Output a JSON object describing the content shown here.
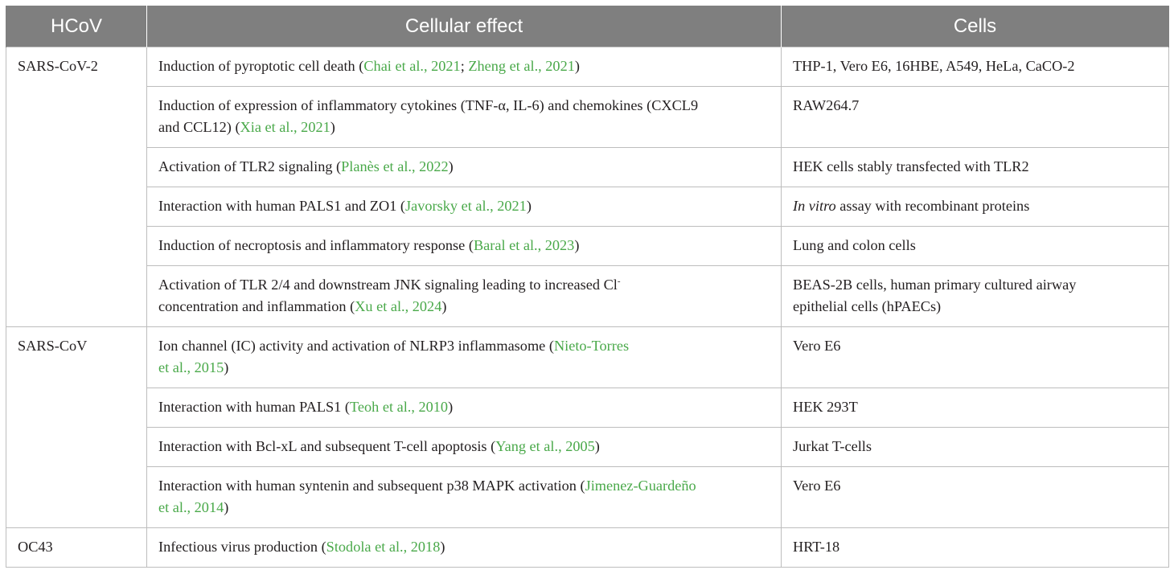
{
  "table": {
    "headers": [
      "HCoV",
      "Cellular effect",
      "Cells"
    ],
    "groups": [
      {
        "hcov": "SARS-CoV-2",
        "rows": [
          {
            "effect_parts": [
              {
                "t": "Induction of pyroptotic cell death (",
                "ref": false
              },
              {
                "t": "Chai et al., 2021",
                "ref": true
              },
              {
                "t": "; ",
                "ref": false
              },
              {
                "t": "Zheng et al., 2021",
                "ref": true
              },
              {
                "t": ")",
                "ref": false
              }
            ],
            "cells_parts": [
              {
                "t": "THP-1, Vero E6, 16HBE, A549, HeLa, CaCO-2",
                "i": false
              }
            ],
            "lines": 1
          },
          {
            "effect_parts": [
              {
                "t": "Induction of expression of inflammatory cytokines (TNF-α, IL-6) and chemokines (CXCL9",
                "ref": false
              },
              {
                "t": "\n",
                "ref": false
              },
              {
                "t": "and CCL12) (",
                "ref": false
              },
              {
                "t": "Xia et al., 2021",
                "ref": true
              },
              {
                "t": ")",
                "ref": false
              }
            ],
            "cells_parts": [
              {
                "t": "RAW264.7",
                "i": false
              }
            ],
            "lines": 2
          },
          {
            "effect_parts": [
              {
                "t": "Activation of TLR2 signaling (",
                "ref": false
              },
              {
                "t": "Planès et al., 2022",
                "ref": true
              },
              {
                "t": ")",
                "ref": false
              }
            ],
            "cells_parts": [
              {
                "t": "HEK cells stably transfected with TLR2",
                "i": false
              }
            ],
            "lines": 1
          },
          {
            "effect_parts": [
              {
                "t": "Interaction with human PALS1 and ZO1 (",
                "ref": false
              },
              {
                "t": "Javorsky et al., 2021",
                "ref": true
              },
              {
                "t": ")",
                "ref": false
              }
            ],
            "cells_parts": [
              {
                "t": "In vitro",
                "i": true
              },
              {
                "t": " assay with recombinant proteins",
                "i": false
              }
            ],
            "lines": 1
          },
          {
            "effect_parts": [
              {
                "t": "Induction of necroptosis and inflammatory response (",
                "ref": false
              },
              {
                "t": "Baral et al., 2023",
                "ref": true
              },
              {
                "t": ")",
                "ref": false
              }
            ],
            "cells_parts": [
              {
                "t": "Lung and colon cells",
                "i": false
              }
            ],
            "lines": 1
          },
          {
            "effect_parts": [
              {
                "t": "Activation of TLR 2/4 and downstream JNK signaling leading to increased Cl",
                "ref": false
              },
              {
                "t": "-",
                "ref": false,
                "sup": true
              },
              {
                "t": "\n",
                "ref": false
              },
              {
                "t": "concentration and inflammation (",
                "ref": false
              },
              {
                "t": "Xu et al., 2024",
                "ref": true
              },
              {
                "t": ")",
                "ref": false
              }
            ],
            "cells_parts": [
              {
                "t": "BEAS-2B cells, human primary cultured airway",
                "i": false
              },
              {
                "t": "\n",
                "i": false
              },
              {
                "t": "epithelial cells (hPAECs)",
                "i": false
              }
            ],
            "lines": 2
          }
        ]
      },
      {
        "hcov": "SARS-CoV",
        "rows": [
          {
            "effect_parts": [
              {
                "t": "Ion channel (IC) activity and activation of NLRP3 inflammasome (",
                "ref": false
              },
              {
                "t": "Nieto-Torres",
                "ref": true
              },
              {
                "t": "\n",
                "ref": false
              },
              {
                "t": "et al., 2015",
                "ref": true
              },
              {
                "t": ")",
                "ref": false
              }
            ],
            "cells_parts": [
              {
                "t": "Vero E6",
                "i": false
              }
            ],
            "lines": 2
          },
          {
            "effect_parts": [
              {
                "t": "Interaction with human PALS1 (",
                "ref": false
              },
              {
                "t": "Teoh et al., 2010",
                "ref": true
              },
              {
                "t": ")",
                "ref": false
              }
            ],
            "cells_parts": [
              {
                "t": "HEK 293T",
                "i": false
              }
            ],
            "lines": 1
          },
          {
            "effect_parts": [
              {
                "t": "Interaction with Bcl-xL and subsequent T-cell apoptosis (",
                "ref": false
              },
              {
                "t": "Yang et al., 2005",
                "ref": true
              },
              {
                "t": ")",
                "ref": false
              }
            ],
            "cells_parts": [
              {
                "t": "Jurkat T-cells",
                "i": false
              }
            ],
            "lines": 1
          },
          {
            "effect_parts": [
              {
                "t": "Interaction with human syntenin and subsequent p38 MAPK activation (",
                "ref": false
              },
              {
                "t": "Jimenez-Guardeño",
                "ref": true
              },
              {
                "t": "\n",
                "ref": false
              },
              {
                "t": "et al., 2014",
                "ref": true
              },
              {
                "t": ")",
                "ref": false
              }
            ],
            "cells_parts": [
              {
                "t": "Vero E6",
                "i": false
              }
            ],
            "lines": 2
          }
        ]
      },
      {
        "hcov": "OC43",
        "rows": [
          {
            "effect_parts": [
              {
                "t": "Infectious virus production (",
                "ref": false
              },
              {
                "t": "Stodola et al., 2018",
                "ref": true
              },
              {
                "t": ")",
                "ref": false
              }
            ],
            "cells_parts": [
              {
                "t": "HRT-18",
                "i": false
              }
            ],
            "lines": 1
          }
        ]
      }
    ]
  },
  "colors": {
    "header_bg": "#7f7f7f",
    "header_text": "#ffffff",
    "reference_link": "#4aa94a",
    "border": "#bdbdbd",
    "body_text": "#231f20"
  }
}
